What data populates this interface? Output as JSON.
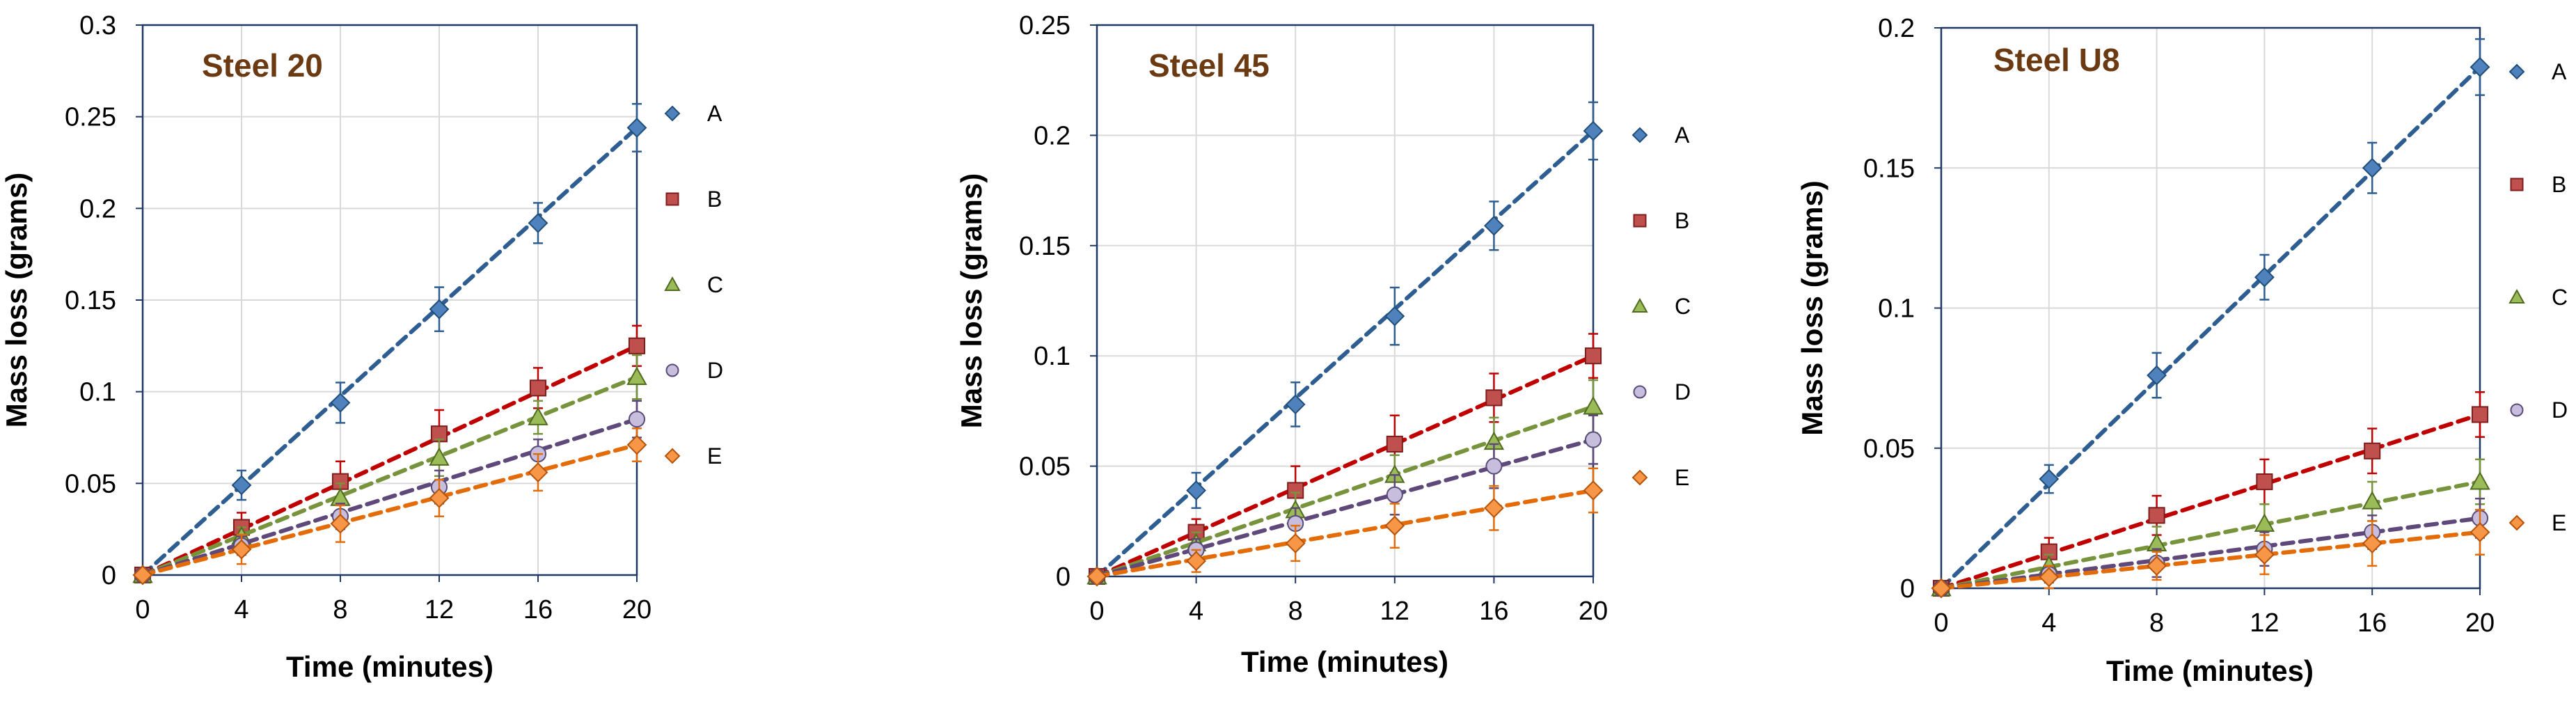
{
  "chart_data": [
    {
      "type": "scatter",
      "title": "Steel 20",
      "xlabel": "Time (minutes)",
      "ylabel": "Mass loss (grams)",
      "x": [
        0,
        4,
        8,
        12,
        16,
        20
      ],
      "xlim": [
        0,
        20
      ],
      "xticks": [
        0,
        4,
        8,
        12,
        16,
        20
      ],
      "ylim": [
        0,
        0.3
      ],
      "yticks": [
        0,
        0.05,
        0.1,
        0.15,
        0.2,
        0.25,
        0.3
      ],
      "ytick_labels": [
        "0",
        "0.05",
        "0.1",
        "0.15",
        "0.2",
        "0.25",
        "0.3"
      ],
      "grid": true,
      "legend_position": "right",
      "series": [
        {
          "name": "A",
          "values": [
            0,
            0.049,
            0.094,
            0.145,
            0.192,
            0.244
          ],
          "errors": [
            0,
            0.008,
            0.011,
            0.012,
            0.011,
            0.013
          ]
        },
        {
          "name": "B",
          "values": [
            0,
            0.026,
            0.051,
            0.077,
            0.102,
            0.125
          ],
          "errors": [
            0,
            0.008,
            0.011,
            0.013,
            0.011,
            0.011
          ]
        },
        {
          "name": "C",
          "values": [
            0,
            0.021,
            0.042,
            0.064,
            0.086,
            0.108
          ],
          "errors": [
            0,
            0.005,
            0.008,
            0.01,
            0.009,
            0.012
          ]
        },
        {
          "name": "D",
          "values": [
            0,
            0.016,
            0.032,
            0.048,
            0.066,
            0.085
          ],
          "errors": [
            0,
            0.005,
            0.007,
            0.009,
            0.008,
            0.01
          ]
        },
        {
          "name": "E",
          "values": [
            0,
            0.014,
            0.028,
            0.042,
            0.056,
            0.071
          ],
          "errors": [
            0,
            0.008,
            0.01,
            0.01,
            0.01,
            0.009
          ]
        }
      ]
    },
    {
      "type": "scatter",
      "title": "Steel 45",
      "xlabel": "Time (minutes)",
      "ylabel": "Mass loss (grams)",
      "x": [
        0,
        4,
        8,
        12,
        16,
        20
      ],
      "xlim": [
        0,
        20
      ],
      "xticks": [
        0,
        4,
        8,
        12,
        16,
        20
      ],
      "ylim": [
        0,
        0.25
      ],
      "yticks": [
        0,
        0.05,
        0.1,
        0.15,
        0.2,
        0.25
      ],
      "ytick_labels": [
        "0",
        "0.05",
        "0.1",
        "0.15",
        "0.2",
        "0.25"
      ],
      "grid": true,
      "legend_position": "right",
      "series": [
        {
          "name": "A",
          "values": [
            0,
            0.039,
            0.078,
            0.118,
            0.159,
            0.202
          ],
          "errors": [
            0,
            0.008,
            0.01,
            0.013,
            0.011,
            0.013
          ]
        },
        {
          "name": "B",
          "values": [
            0,
            0.02,
            0.039,
            0.06,
            0.081,
            0.1
          ],
          "errors": [
            0,
            0.006,
            0.011,
            0.013,
            0.011,
            0.01
          ]
        },
        {
          "name": "C",
          "values": [
            0,
            0.015,
            0.03,
            0.046,
            0.061,
            0.077
          ],
          "errors": [
            0,
            0.005,
            0.008,
            0.009,
            0.011,
            0.012
          ]
        },
        {
          "name": "D",
          "values": [
            0,
            0.012,
            0.024,
            0.037,
            0.05,
            0.062
          ],
          "errors": [
            0,
            0.005,
            0.007,
            0.009,
            0.01,
            0.011
          ]
        },
        {
          "name": "E",
          "values": [
            0,
            0.007,
            0.015,
            0.023,
            0.031,
            0.039
          ],
          "errors": [
            0,
            0.005,
            0.008,
            0.01,
            0.01,
            0.01
          ]
        }
      ]
    },
    {
      "type": "scatter",
      "title": "Steel U8",
      "xlabel": "Time (minutes)",
      "ylabel": "Mass loss (grams)",
      "x": [
        0,
        4,
        8,
        12,
        16,
        20
      ],
      "xlim": [
        0,
        20
      ],
      "xticks": [
        0,
        4,
        8,
        12,
        16,
        20
      ],
      "ylim": [
        0,
        0.2
      ],
      "yticks": [
        0,
        0.05,
        0.1,
        0.15,
        0.2
      ],
      "ytick_labels": [
        "0",
        "0.05",
        "0.1",
        "0.15",
        "0.2"
      ],
      "grid": true,
      "legend_position": "right",
      "series": [
        {
          "name": "A",
          "values": [
            0,
            0.039,
            0.076,
            0.111,
            0.15,
            0.186
          ],
          "errors": [
            0,
            0.005,
            0.008,
            0.008,
            0.009,
            0.01
          ]
        },
        {
          "name": "B",
          "values": [
            0,
            0.013,
            0.026,
            0.038,
            0.049,
            0.062
          ],
          "errors": [
            0,
            0.005,
            0.007,
            0.008,
            0.008,
            0.008
          ]
        },
        {
          "name": "C",
          "values": [
            0,
            0.008,
            0.016,
            0.023,
            0.031,
            0.038
          ],
          "errors": [
            0,
            0.004,
            0.006,
            0.007,
            0.007,
            0.008
          ]
        },
        {
          "name": "D",
          "values": [
            0,
            0.005,
            0.009,
            0.014,
            0.02,
            0.025
          ],
          "errors": [
            0,
            0.003,
            0.005,
            0.006,
            0.006,
            0.007
          ]
        },
        {
          "name": "E",
          "values": [
            0,
            0.004,
            0.008,
            0.012,
            0.016,
            0.02
          ],
          "errors": [
            0,
            0.004,
            0.005,
            0.007,
            0.008,
            0.008
          ]
        }
      ]
    }
  ],
  "styles": {
    "series_colors": {
      "A": "#4f81bd",
      "B": "#c0504d",
      "C": "#9bbb59",
      "D": "#8064a2",
      "E": "#f79646"
    },
    "marker_fill": {
      "A": "#4f81bd",
      "B": "#c0504d",
      "C": "#9bbb59",
      "D": "#c6bedc",
      "E": "#f79646"
    },
    "marker_stroke": {
      "A": "#1f4e79",
      "B": "#7f1d1d",
      "C": "#4f6b1f",
      "D": "#5a4a7a",
      "E": "#b45309"
    },
    "line_colors": {
      "A": "#2e5e91",
      "B": "#c00000",
      "C": "#77933c",
      "D": "#5f497a",
      "E": "#e36c09"
    },
    "markers": {
      "A": "diamond",
      "B": "square",
      "C": "triangle",
      "D": "circle",
      "E": "diamond"
    },
    "grid_color": "#d9d9d9",
    "axis_color": "#1f3864",
    "title_color": "#6b3a12"
  }
}
